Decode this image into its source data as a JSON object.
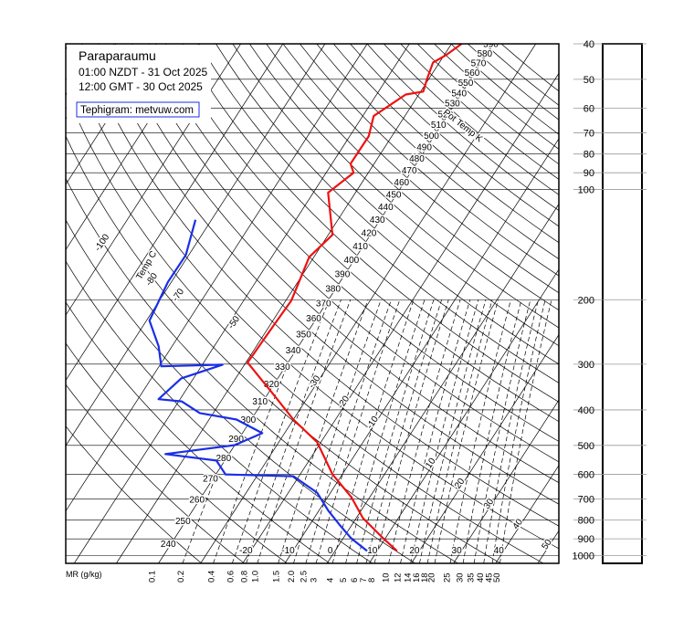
{
  "chart_data": {
    "type": "tephigram",
    "title": "Paraparaumu",
    "subtitle": [
      "01:00 NZDT - 31 Oct 2025",
      "12:00 GMT - 30 Oct 2025"
    ],
    "credit": "Tephigram: metvuw.com",
    "ylim": [
      1050,
      40
    ],
    "yticks": [
      40,
      50,
      60,
      70,
      80,
      90,
      100,
      200,
      300,
      400,
      500,
      600,
      700,
      800,
      900,
      1000
    ],
    "xlim": [
      -62,
      55
    ],
    "isotherm_title": "Temp C",
    "isotherms": [
      -130,
      -120,
      -110,
      -100,
      -90,
      -80,
      -70,
      -60,
      -50,
      -40,
      -30,
      -20,
      -10,
      0,
      10,
      20,
      30,
      40,
      50,
      60
    ],
    "isotherm_labels_bottom": [
      -20,
      -10,
      0,
      10,
      20,
      30,
      40
    ],
    "isotherm_labels_mid": [
      -30,
      -20,
      -10,
      10,
      20,
      30,
      40,
      50
    ],
    "isotherm_labels_top": [
      -100,
      -80,
      -70,
      -50
    ],
    "adiabat_title": "Pot Temp K",
    "adiabats": [
      240,
      250,
      260,
      270,
      280,
      290,
      300,
      310,
      320,
      330,
      340,
      350,
      360,
      370,
      380,
      390,
      400,
      410,
      420,
      430,
      440,
      450,
      460,
      470,
      480,
      490,
      500,
      510,
      520,
      530,
      540,
      550,
      560,
      570,
      580,
      590
    ],
    "mixing_ratio": {
      "label": "MR (g/kg)",
      "ticks": [
        0.1,
        0.2,
        0.4,
        0.6,
        0.8,
        {
          "value": 1,
          "label": "1.0"
        },
        1.5,
        {
          "value": 2,
          "label": "2.0"
        },
        2.5,
        3,
        4,
        5,
        6,
        7,
        8,
        10,
        12,
        14,
        16,
        18,
        20,
        25,
        30,
        35,
        40,
        45,
        50
      ]
    },
    "series": [
      {
        "color": "#ee1111",
        "pressure": [
          971,
          897,
          790,
          692,
          600,
          490,
          425,
          362,
          297,
          236,
          201,
          153,
          133,
          102,
          90,
          85,
          71.5,
          63,
          55,
          54,
          50,
          45,
          43,
          40
        ],
        "values": [
          14.7,
          9.5,
          1.6,
          -4.4,
          -12.3,
          -20.9,
          -30.0,
          -38.7,
          -49.6,
          -49.1,
          -48.7,
          -51.1,
          -49.0,
          -56.5,
          -53.5,
          -55.6,
          -55.5,
          -57.4,
          -53.1,
          -49.4,
          -50.4,
          -51.5,
          -49.6,
          -47.6
        ]
      },
      {
        "color": "#1a2ee8",
        "pressure": [
          971,
          897,
          823,
          755,
          673,
          607,
          600,
          550,
          528,
          499,
          463,
          425,
          408,
          379,
          374,
          328,
          301,
          304,
          268,
          228,
          179,
          151,
          121
        ],
        "values": [
          7.6,
          1.9,
          -3.0,
          -7.7,
          -13.2,
          -21.3,
          -37.7,
          -42.0,
          -55.1,
          -40.0,
          -35.3,
          -43.5,
          -53.2,
          -59.3,
          -65.1,
          -62.9,
          -55.2,
          -69.5,
          -73.2,
          -79.3,
          -80.8,
          -80.7,
          -83.8
        ]
      }
    ]
  }
}
